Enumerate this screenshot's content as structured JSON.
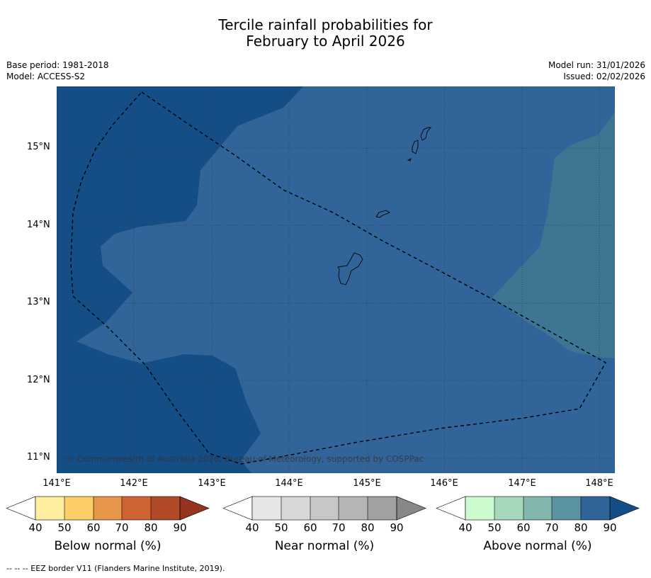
{
  "title": {
    "line1": "Tercile rainfall probabilities for",
    "line2": "February to April 2026"
  },
  "meta": {
    "base_period": "Base period: 1981-2018",
    "model": "Model: ACCESS-S2",
    "model_run": "Model run: 31/01/2026",
    "issued": "Issued: 02/02/2026"
  },
  "map": {
    "lat_labels": [
      "15°N",
      "14°N",
      "13°N",
      "12°N",
      "11°N"
    ],
    "lon_labels": [
      "141°E",
      "142°E",
      "143°E",
      "144°E",
      "145°E",
      "146°E",
      "147°E",
      "148°E"
    ],
    "copyright": "© Commonwealth of Australia 2026, Bureau of Meteorology, supported by COSPPac",
    "colors": {
      "above_90": "#154d87",
      "above_80": "#31659a",
      "above_70": "#3d7592"
    }
  },
  "legends": {
    "ticks": [
      "40",
      "50",
      "60",
      "70",
      "80",
      "90"
    ],
    "below": {
      "title": "Below normal (%)",
      "colors": [
        "#ffffff",
        "#fdeea0",
        "#fcce66",
        "#e59648",
        "#cf6333",
        "#b24a27",
        "#973420"
      ]
    },
    "near": {
      "title": "Near normal (%)",
      "colors": [
        "#ffffff",
        "#e6e6e6",
        "#d7d7d7",
        "#c7c7c7",
        "#b6b6b6",
        "#a1a1a1",
        "#888888"
      ]
    },
    "above": {
      "title": "Above normal (%)",
      "colors": [
        "#ffffff",
        "#cbfbce",
        "#a6d8bc",
        "#83b6af",
        "#5a92a2",
        "#31659a",
        "#154d87"
      ]
    }
  },
  "footnote": "--  --  -- EEZ border V11 (Flanders Marine Institute, 2019)."
}
